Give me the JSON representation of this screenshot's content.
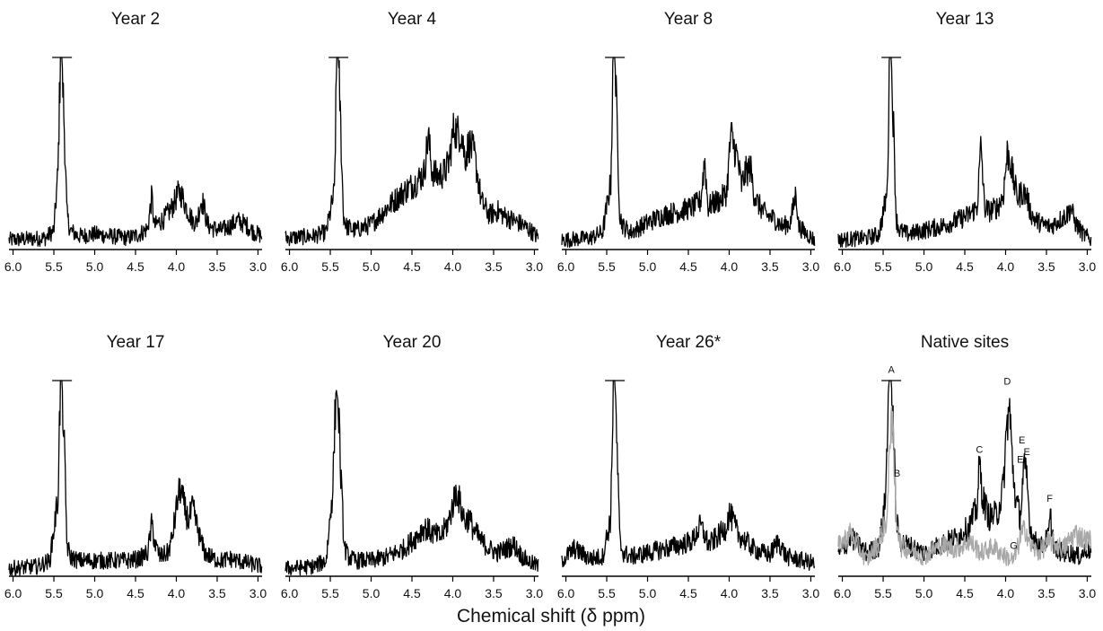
{
  "figure": {
    "xlabel": "Chemical shift (δ ppm)"
  },
  "chart_data": [
    {
      "type": "line",
      "title": "Year 2",
      "xlim": [
        6.05,
        2.95
      ],
      "ylim": [
        0,
        100
      ],
      "xticks": [
        "6.0",
        "5.5",
        "5.0",
        "4.5",
        "4.0",
        "3.5",
        "3.0"
      ],
      "xtick_values": [
        6.0,
        5.5,
        5.0,
        4.5,
        4.0,
        3.5,
        3.0
      ],
      "peak_clipped": true,
      "series": [
        {
          "color": "#000000",
          "x": [
            6.05,
            5.6,
            5.5,
            5.45,
            5.42,
            5.4,
            5.37,
            5.34,
            5.3,
            5.2,
            5.0,
            4.8,
            4.6,
            4.45,
            4.35,
            4.3,
            4.27,
            4.22,
            4.15,
            4.05,
            3.97,
            3.93,
            3.88,
            3.8,
            3.75,
            3.7,
            3.67,
            3.62,
            3.55,
            3.45,
            3.35,
            3.25,
            3.15,
            3.05,
            2.95
          ],
          "y": [
            5,
            6,
            10,
            40,
            100,
            100,
            60,
            18,
            10,
            7,
            8,
            7,
            6,
            8,
            11,
            28,
            12,
            14,
            16,
            22,
            30,
            28,
            22,
            15,
            14,
            25,
            24,
            13,
            11,
            10,
            12,
            15,
            13,
            9,
            7
          ]
        }
      ]
    },
    {
      "type": "line",
      "title": "Year 4",
      "xlim": [
        6.05,
        2.95
      ],
      "ylim": [
        0,
        100
      ],
      "xticks": [
        "6.0",
        "5.5",
        "5.0",
        "4.5",
        "4.0",
        "3.5",
        "3.0"
      ],
      "xtick_values": [
        6.0,
        5.5,
        5.0,
        4.5,
        4.0,
        3.5,
        3.0
      ],
      "peak_clipped": true,
      "series": [
        {
          "color": "#000000",
          "x": [
            6.05,
            5.7,
            5.55,
            5.45,
            5.42,
            5.4,
            5.37,
            5.34,
            5.3,
            5.2,
            5.0,
            4.8,
            4.6,
            4.45,
            4.35,
            4.3,
            4.26,
            4.2,
            4.1,
            4.05,
            3.98,
            3.95,
            3.9,
            3.85,
            3.8,
            3.74,
            3.7,
            3.65,
            3.55,
            3.45,
            3.35,
            3.25,
            3.15,
            3.05,
            2.95
          ],
          "y": [
            6,
            7,
            9,
            30,
            100,
            100,
            60,
            18,
            12,
            10,
            13,
            22,
            30,
            35,
            40,
            60,
            42,
            38,
            40,
            45,
            65,
            60,
            62,
            48,
            55,
            50,
            40,
            25,
            18,
            20,
            17,
            15,
            13,
            10,
            6
          ]
        }
      ]
    },
    {
      "type": "line",
      "title": "Year 8",
      "xlim": [
        6.05,
        2.95
      ],
      "ylim": [
        0,
        100
      ],
      "xticks": [
        "6.0",
        "5.5",
        "5.0",
        "4.5",
        "4.0",
        "3.5",
        "3.0"
      ],
      "xtick_values": [
        6.0,
        5.5,
        5.0,
        4.5,
        4.0,
        3.5,
        3.0
      ],
      "peak_clipped": true,
      "series": [
        {
          "color": "#000000",
          "x": [
            6.05,
            5.7,
            5.55,
            5.45,
            5.42,
            5.4,
            5.37,
            5.34,
            5.3,
            5.2,
            5.0,
            4.8,
            4.6,
            4.45,
            4.35,
            4.3,
            4.26,
            4.2,
            4.1,
            4.03,
            3.98,
            3.95,
            3.9,
            3.85,
            3.8,
            3.74,
            3.7,
            3.65,
            3.55,
            3.45,
            3.35,
            3.25,
            3.18,
            3.15,
            3.05,
            2.95
          ],
          "y": [
            5,
            6,
            9,
            35,
            100,
            100,
            60,
            18,
            12,
            9,
            14,
            18,
            20,
            22,
            25,
            47,
            22,
            24,
            26,
            30,
            60,
            55,
            48,
            33,
            40,
            43,
            30,
            24,
            18,
            16,
            12,
            14,
            30,
            12,
            8,
            5
          ]
        }
      ]
    },
    {
      "type": "line",
      "title": "Year 13",
      "xlim": [
        6.05,
        2.95
      ],
      "ylim": [
        0,
        100
      ],
      "xticks": [
        "6.0",
        "5.5",
        "5.0",
        "4.5",
        "4.0",
        "3.5",
        "3.0"
      ],
      "xtick_values": [
        6.0,
        5.5,
        5.0,
        4.5,
        4.0,
        3.5,
        3.0
      ],
      "peak_clipped": true,
      "series": [
        {
          "color": "#000000",
          "x": [
            6.05,
            5.7,
            5.55,
            5.45,
            5.42,
            5.4,
            5.37,
            5.34,
            5.3,
            5.2,
            5.0,
            4.8,
            4.6,
            4.45,
            4.35,
            4.3,
            4.26,
            4.2,
            4.1,
            4.03,
            3.98,
            3.95,
            3.9,
            3.85,
            3.8,
            3.74,
            3.7,
            3.65,
            3.55,
            3.45,
            3.35,
            3.25,
            3.2,
            3.15,
            3.05,
            2.95
          ],
          "y": [
            5,
            6,
            8,
            30,
            100,
            100,
            60,
            16,
            10,
            8,
            10,
            12,
            15,
            18,
            22,
            55,
            22,
            20,
            22,
            28,
            50,
            48,
            35,
            27,
            30,
            28,
            20,
            16,
            13,
            12,
            15,
            18,
            22,
            14,
            8,
            5
          ]
        }
      ]
    },
    {
      "type": "line",
      "title": "Year 17",
      "xlim": [
        6.05,
        2.95
      ],
      "ylim": [
        0,
        100
      ],
      "xticks": [
        "6.0",
        "5.5",
        "5.0",
        "4.5",
        "4.0",
        "3.5",
        "3.0"
      ],
      "xtick_values": [
        6.0,
        5.5,
        5.0,
        4.5,
        4.0,
        3.5,
        3.0
      ],
      "peak_clipped": true,
      "series": [
        {
          "color": "#000000",
          "x": [
            6.05,
            5.7,
            5.55,
            5.45,
            5.42,
            5.4,
            5.37,
            5.34,
            5.3,
            5.2,
            5.0,
            4.8,
            4.6,
            4.45,
            4.35,
            4.3,
            4.26,
            4.2,
            4.1,
            4.05,
            3.98,
            3.95,
            3.9,
            3.85,
            3.8,
            3.75,
            3.7,
            3.65,
            3.55,
            3.45,
            3.35,
            3.25,
            3.15,
            3.05,
            2.95
          ],
          "y": [
            4,
            5,
            8,
            40,
            100,
            100,
            62,
            16,
            10,
            8,
            8,
            8,
            8,
            9,
            12,
            27,
            16,
            10,
            12,
            20,
            40,
            45,
            35,
            28,
            35,
            26,
            18,
            12,
            9,
            8,
            9,
            8,
            7,
            6,
            5
          ]
        }
      ]
    },
    {
      "type": "line",
      "title": "Year 20",
      "xlim": [
        6.05,
        2.95
      ],
      "ylim": [
        0,
        100
      ],
      "xticks": [
        "6.0",
        "5.5",
        "5.0",
        "4.5",
        "4.0",
        "3.5",
        "3.0"
      ],
      "xtick_values": [
        6.0,
        5.5,
        5.0,
        4.5,
        4.0,
        3.5,
        3.0
      ],
      "peak_clipped": false,
      "series": [
        {
          "color": "#000000",
          "x": [
            6.05,
            5.7,
            5.55,
            5.47,
            5.43,
            5.4,
            5.37,
            5.33,
            5.28,
            5.2,
            5.0,
            4.8,
            4.6,
            4.45,
            4.35,
            4.25,
            4.15,
            4.05,
            3.98,
            3.95,
            3.9,
            3.85,
            3.8,
            3.75,
            3.65,
            3.55,
            3.45,
            3.35,
            3.25,
            3.15,
            3.05,
            2.95
          ],
          "y": [
            4,
            5,
            8,
            45,
            96,
            88,
            50,
            15,
            10,
            8,
            8,
            10,
            14,
            20,
            25,
            22,
            20,
            28,
            40,
            44,
            35,
            28,
            30,
            24,
            18,
            14,
            12,
            14,
            16,
            10,
            7,
            5
          ]
        }
      ]
    },
    {
      "type": "line",
      "title": "Year 26*",
      "xlim": [
        6.05,
        2.95
      ],
      "ylim": [
        0,
        100
      ],
      "xticks": [
        "6.0",
        "5.5",
        "5.0",
        "4.5",
        "4.0",
        "3.5",
        "3.0"
      ],
      "xtick_values": [
        6.0,
        5.5,
        5.0,
        4.5,
        4.0,
        3.5,
        3.0
      ],
      "peak_clipped": true,
      "series": [
        {
          "color": "#000000",
          "x": [
            6.05,
            5.9,
            5.7,
            5.55,
            5.45,
            5.42,
            5.4,
            5.37,
            5.34,
            5.3,
            5.2,
            5.0,
            4.8,
            4.6,
            4.45,
            4.35,
            4.25,
            4.15,
            4.05,
            4.0,
            3.95,
            3.9,
            3.85,
            3.8,
            3.7,
            3.6,
            3.5,
            3.4,
            3.3,
            3.2,
            3.1,
            3.0,
            2.95
          ],
          "y": [
            8,
            14,
            9,
            10,
            30,
            100,
            100,
            60,
            18,
            12,
            10,
            12,
            14,
            16,
            18,
            26,
            16,
            20,
            24,
            32,
            28,
            22,
            20,
            18,
            14,
            12,
            11,
            18,
            10,
            9,
            8,
            7,
            6
          ]
        }
      ]
    },
    {
      "type": "line",
      "title": "Native sites",
      "xlim": [
        6.05,
        2.95
      ],
      "ylim": [
        0,
        100
      ],
      "xticks": [
        "6.0",
        "5.5",
        "5.0",
        "4.5",
        "4.0",
        "3.5",
        "3.0"
      ],
      "xtick_values": [
        6.0,
        5.5,
        5.0,
        4.5,
        4.0,
        3.5,
        3.0
      ],
      "peak_clipped": true,
      "annotations": [
        {
          "text": "A",
          "x": 5.4,
          "y": 104
        },
        {
          "text": "B",
          "x": 5.33,
          "y": 51
        },
        {
          "text": "C",
          "x": 4.32,
          "y": 63
        },
        {
          "text": "D",
          "x": 3.98,
          "y": 98
        },
        {
          "text": "E",
          "x": 3.8,
          "y": 68
        },
        {
          "text": "E",
          "x": 3.82,
          "y": 58
        },
        {
          "text": "E",
          "x": 3.74,
          "y": 62
        },
        {
          "text": "F",
          "x": 3.46,
          "y": 38
        },
        {
          "text": "G",
          "x": 3.9,
          "y": 14
        }
      ],
      "series": [
        {
          "color": "#000000",
          "x": [
            6.05,
            5.9,
            5.7,
            5.55,
            5.47,
            5.43,
            5.4,
            5.37,
            5.34,
            5.3,
            5.2,
            5.0,
            4.8,
            4.6,
            4.45,
            4.35,
            4.32,
            4.28,
            4.2,
            4.1,
            4.03,
            3.98,
            3.95,
            3.92,
            3.88,
            3.82,
            3.78,
            3.74,
            3.7,
            3.65,
            3.55,
            3.48,
            3.45,
            3.4,
            3.3,
            3.2,
            3.1,
            3.0,
            2.95
          ],
          "y": [
            10,
            20,
            12,
            15,
            40,
            100,
            100,
            70,
            30,
            18,
            16,
            12,
            16,
            20,
            25,
            35,
            58,
            40,
            30,
            32,
            45,
            80,
            85,
            60,
            40,
            30,
            55,
            50,
            25,
            18,
            15,
            20,
            30,
            14,
            12,
            12,
            10,
            14,
            12
          ]
        },
        {
          "color": "#a8a8a8",
          "x": [
            6.05,
            5.9,
            5.7,
            5.55,
            5.45,
            5.4,
            5.37,
            5.34,
            5.32,
            5.28,
            5.2,
            5.0,
            4.8,
            4.6,
            4.45,
            4.3,
            4.15,
            4.0,
            3.9,
            3.8,
            3.75,
            3.7,
            3.6,
            3.45,
            3.3,
            3.15,
            3.0,
            2.95
          ],
          "y": [
            15,
            22,
            8,
            18,
            30,
            90,
            60,
            30,
            26,
            15,
            14,
            10,
            16,
            14,
            18,
            12,
            15,
            10,
            8,
            22,
            24,
            16,
            12,
            18,
            14,
            22,
            18,
            20
          ]
        }
      ]
    }
  ]
}
